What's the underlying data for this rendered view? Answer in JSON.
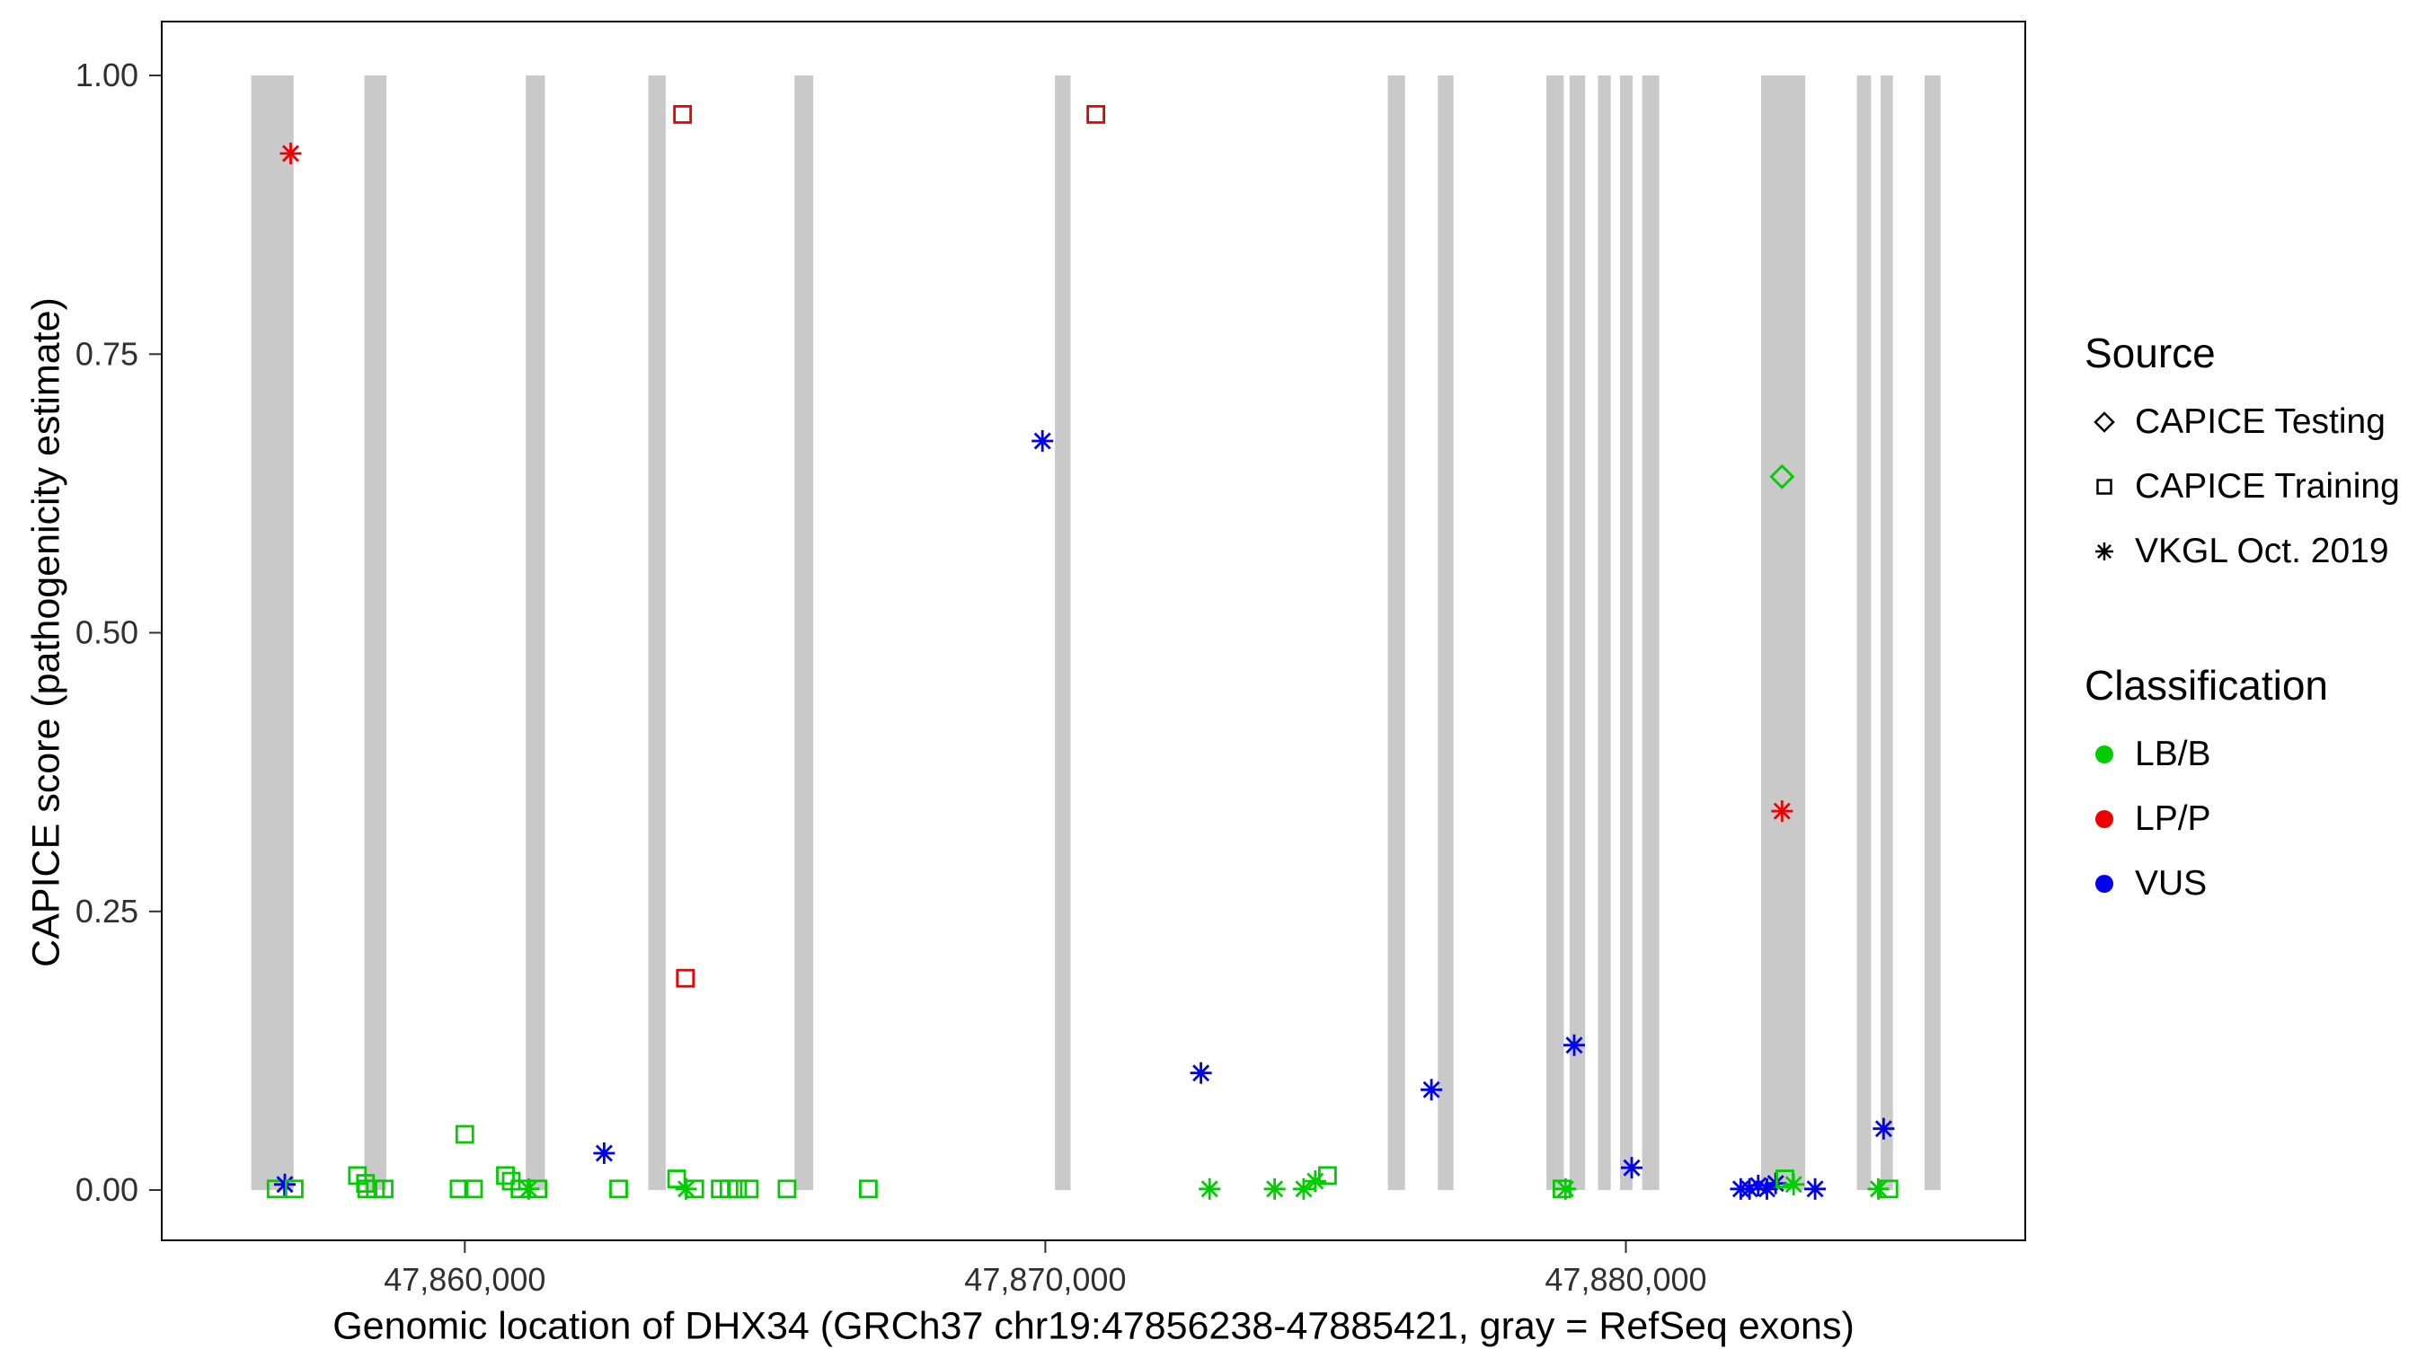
{
  "chart_data": {
    "type": "scatter",
    "title": "",
    "xlabel": "Genomic location of DHX34 (GRCh37 chr19:47856238-47885421, gray = RefSeq exons)",
    "ylabel": "CAPICE score (pathogenicity estimate)",
    "xlim": [
      47854779,
      47886880
    ],
    "ylim": [
      0,
      1
    ],
    "grid": "off",
    "legend_position": "right",
    "x_ticks": [
      {
        "value": 47860000,
        "label": "47,860,000"
      },
      {
        "value": 47870000,
        "label": "47,870,000"
      },
      {
        "value": 47880000,
        "label": "47,880,000"
      }
    ],
    "y_ticks": [
      {
        "value": 0,
        "label": "0.00"
      },
      {
        "value": 0.25,
        "label": "0.25"
      },
      {
        "value": 0.5,
        "label": "0.50"
      },
      {
        "value": 0.75,
        "label": "0.75"
      },
      {
        "value": 1,
        "label": "1.00"
      }
    ],
    "exon_color": "#C9C9C9",
    "exons": [
      [
        47856320,
        47857050
      ],
      [
        47858270,
        47858650
      ],
      [
        47861050,
        47861380
      ],
      [
        47863160,
        47863460
      ],
      [
        47865680,
        47866000
      ],
      [
        47870165,
        47870435
      ],
      [
        47875900,
        47876195
      ],
      [
        47876760,
        47877030
      ],
      [
        47878630,
        47878930
      ],
      [
        47879030,
        47879300
      ],
      [
        47879520,
        47879740
      ],
      [
        47879900,
        47880115
      ],
      [
        47880280,
        47880575
      ],
      [
        47882330,
        47883090
      ],
      [
        47883980,
        47884225
      ],
      [
        47884390,
        47884600
      ],
      [
        47885145,
        47885420
      ]
    ],
    "colors": {
      "LB/B": "#00CC00",
      "LP/P": "#EE0000",
      "VUS": "#0000EE"
    },
    "shapes": {
      "CAPICE Testing": "diamond",
      "CAPICE Training": "square",
      "VKGL Oct. 2019": "asterisk"
    },
    "legend": {
      "source": {
        "title": "Source",
        "items": [
          {
            "label": "CAPICE Testing",
            "shape": "diamond"
          },
          {
            "label": "CAPICE Training",
            "shape": "square"
          },
          {
            "label": "VKGL Oct. 2019",
            "shape": "asterisk"
          }
        ]
      },
      "classification": {
        "title": "Classification",
        "items": [
          {
            "label": "LB/B",
            "color": "#00CC00"
          },
          {
            "label": "LP/P",
            "color": "#EE0000"
          },
          {
            "label": "VUS",
            "color": "#0000EE"
          }
        ]
      }
    },
    "points": [
      {
        "x": 47856750,
        "y": 0.001,
        "source": "CAPICE Training",
        "classification": "LB/B"
      },
      {
        "x": 47856900,
        "y": 0.005,
        "source": "VKGL Oct. 2019",
        "classification": "VUS"
      },
      {
        "x": 47857000,
        "y": 0.93,
        "source": "VKGL Oct. 2019",
        "classification": "LP/P"
      },
      {
        "x": 47857060,
        "y": 0.001,
        "source": "CAPICE Training",
        "classification": "LB/B"
      },
      {
        "x": 47858150,
        "y": 0.013,
        "source": "CAPICE Training",
        "classification": "LB/B"
      },
      {
        "x": 47858290,
        "y": 0.006,
        "source": "CAPICE Training",
        "classification": "LB/B"
      },
      {
        "x": 47858310,
        "y": 0.001,
        "source": "CAPICE Training",
        "classification": "LB/B"
      },
      {
        "x": 47858460,
        "y": 0.001,
        "source": "CAPICE Training",
        "classification": "LB/B"
      },
      {
        "x": 47858610,
        "y": 0.001,
        "source": "CAPICE Training",
        "classification": "LB/B"
      },
      {
        "x": 47859900,
        "y": 0.001,
        "source": "CAPICE Training",
        "classification": "LB/B"
      },
      {
        "x": 47860000,
        "y": 0.05,
        "source": "CAPICE Training",
        "classification": "LB/B"
      },
      {
        "x": 47860150,
        "y": 0.001,
        "source": "CAPICE Training",
        "classification": "LB/B"
      },
      {
        "x": 47860700,
        "y": 0.013,
        "source": "CAPICE Training",
        "classification": "LB/B"
      },
      {
        "x": 47860800,
        "y": 0.008,
        "source": "CAPICE Training",
        "classification": "LB/B"
      },
      {
        "x": 47860950,
        "y": 0.001,
        "source": "CAPICE Training",
        "classification": "LB/B"
      },
      {
        "x": 47861100,
        "y": 0.001,
        "source": "VKGL Oct. 2019",
        "classification": "LB/B"
      },
      {
        "x": 47861260,
        "y": 0.001,
        "source": "CAPICE Training",
        "classification": "LB/B"
      },
      {
        "x": 47862400,
        "y": 0.033,
        "source": "VKGL Oct. 2019",
        "classification": "VUS"
      },
      {
        "x": 47862650,
        "y": 0.001,
        "source": "CAPICE Training",
        "classification": "LB/B"
      },
      {
        "x": 47863650,
        "y": 0.01,
        "source": "CAPICE Training",
        "classification": "LB/B"
      },
      {
        "x": 47863750,
        "y": 0.965,
        "source": "CAPICE Training",
        "classification": "LP/P"
      },
      {
        "x": 47863800,
        "y": 0.19,
        "source": "CAPICE Training",
        "classification": "LP/P"
      },
      {
        "x": 47863810,
        "y": 0.001,
        "source": "VKGL Oct. 2019",
        "classification": "LB/B"
      },
      {
        "x": 47863960,
        "y": 0.001,
        "source": "CAPICE Training",
        "classification": "LB/B"
      },
      {
        "x": 47864400,
        "y": 0.001,
        "source": "CAPICE Training",
        "classification": "LB/B"
      },
      {
        "x": 47864550,
        "y": 0.001,
        "source": "CAPICE Training",
        "classification": "LB/B"
      },
      {
        "x": 47864700,
        "y": 0.001,
        "source": "CAPICE Training",
        "classification": "LB/B"
      },
      {
        "x": 47864900,
        "y": 0.001,
        "source": "CAPICE Training",
        "classification": "LB/B"
      },
      {
        "x": 47865550,
        "y": 0.001,
        "source": "CAPICE Training",
        "classification": "LB/B"
      },
      {
        "x": 47866950,
        "y": 0.001,
        "source": "CAPICE Training",
        "classification": "LB/B"
      },
      {
        "x": 47869950,
        "y": 0.672,
        "source": "VKGL Oct. 2019",
        "classification": "VUS"
      },
      {
        "x": 47870870,
        "y": 0.965,
        "source": "CAPICE Training",
        "classification": "LP/P"
      },
      {
        "x": 47872680,
        "y": 0.105,
        "source": "VKGL Oct. 2019",
        "classification": "VUS"
      },
      {
        "x": 47872830,
        "y": 0.001,
        "source": "VKGL Oct. 2019",
        "classification": "LB/B"
      },
      {
        "x": 47873950,
        "y": 0.001,
        "source": "VKGL Oct. 2019",
        "classification": "LB/B"
      },
      {
        "x": 47874450,
        "y": 0.001,
        "source": "VKGL Oct. 2019",
        "classification": "LB/B"
      },
      {
        "x": 47874650,
        "y": 0.008,
        "source": "VKGL Oct. 2019",
        "classification": "LB/B"
      },
      {
        "x": 47874860,
        "y": 0.013,
        "source": "CAPICE Training",
        "classification": "LB/B"
      },
      {
        "x": 47876650,
        "y": 0.09,
        "source": "VKGL Oct. 2019",
        "classification": "VUS"
      },
      {
        "x": 47878900,
        "y": 0.001,
        "source": "CAPICE Training",
        "classification": "LB/B"
      },
      {
        "x": 47878960,
        "y": 0.001,
        "source": "VKGL Oct. 2019",
        "classification": "LB/B"
      },
      {
        "x": 47879110,
        "y": 0.13,
        "source": "VKGL Oct. 2019",
        "classification": "VUS"
      },
      {
        "x": 47880100,
        "y": 0.02,
        "source": "VKGL Oct. 2019",
        "classification": "VUS"
      },
      {
        "x": 47881980,
        "y": 0.001,
        "source": "VKGL Oct. 2019",
        "classification": "VUS"
      },
      {
        "x": 47882130,
        "y": 0.001,
        "source": "VKGL Oct. 2019",
        "classification": "VUS"
      },
      {
        "x": 47882280,
        "y": 0.004,
        "source": "VKGL Oct. 2019",
        "classification": "VUS"
      },
      {
        "x": 47882430,
        "y": 0.001,
        "source": "VKGL Oct. 2019",
        "classification": "VUS"
      },
      {
        "x": 47882580,
        "y": 0.006,
        "source": "VKGL Oct. 2019",
        "classification": "VUS"
      },
      {
        "x": 47882690,
        "y": 0.64,
        "source": "CAPICE Testing",
        "classification": "LB/B"
      },
      {
        "x": 47882690,
        "y": 0.34,
        "source": "VKGL Oct. 2019",
        "classification": "LP/P"
      },
      {
        "x": 47882740,
        "y": 0.01,
        "source": "CAPICE Training",
        "classification": "LB/B"
      },
      {
        "x": 47882890,
        "y": 0.005,
        "source": "VKGL Oct. 2019",
        "classification": "LB/B"
      },
      {
        "x": 47883260,
        "y": 0.001,
        "source": "VKGL Oct. 2019",
        "classification": "VUS"
      },
      {
        "x": 47884350,
        "y": 0.001,
        "source": "VKGL Oct. 2019",
        "classification": "LB/B"
      },
      {
        "x": 47884440,
        "y": 0.055,
        "source": "VKGL Oct. 2019",
        "classification": "VUS"
      },
      {
        "x": 47884530,
        "y": 0.001,
        "source": "CAPICE Training",
        "classification": "LB/B"
      }
    ]
  }
}
